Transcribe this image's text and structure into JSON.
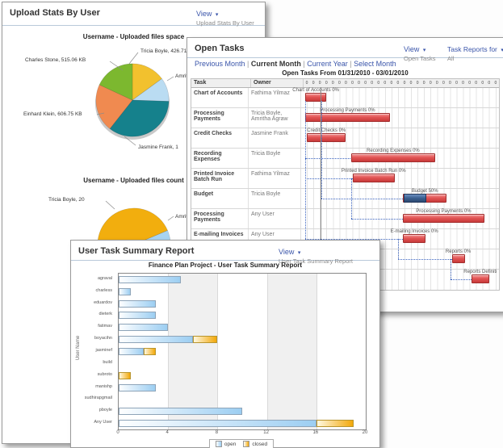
{
  "upload_stats": {
    "title": "Upload Stats By User",
    "view": {
      "label": "View",
      "selected": "Upload Stats By User"
    },
    "pie_space": {
      "title": "Username - Uploaded files space",
      "rotate": 0,
      "slices": [
        {
          "label": "Tricia Boyle, 426.71 K",
          "value": 426.71,
          "color": "#F2C12E"
        },
        {
          "label": "Amrit",
          "value": 300,
          "color": "#BADCF2"
        },
        {
          "label": "Jasmine Frank, 1",
          "value": 1000,
          "color": "#15818C"
        },
        {
          "label": "Einhard Klein, 606.75 KB",
          "value": 606.75,
          "color": "#F08A50"
        },
        {
          "label": "Charles Stone, 515.06 KB",
          "value": 515.06,
          "color": "#7CB82F"
        }
      ]
    },
    "pie_count": {
      "title": "Username - Uploaded files count",
      "rotate": 67,
      "slices": [
        {
          "label": "Amrit",
          "value": 6,
          "color": "#A8D4F2"
        },
        {
          "label": "Tricia Boyle, 20",
          "value": 20,
          "color": "#F2AE0E"
        }
      ]
    }
  },
  "open_tasks": {
    "title": "Open Tasks",
    "view": {
      "label": "View",
      "selected": "Open Tasks"
    },
    "task_reports": {
      "label": "Task Reports for",
      "selected": "All"
    },
    "nav": [
      {
        "label": "Previous Month",
        "active": false
      },
      {
        "label": "Current Month",
        "active": true
      },
      {
        "label": "Current Year",
        "active": false
      },
      {
        "label": "Select Month",
        "active": false
      }
    ],
    "chart_title": "Open Tasks From 01/31/2010 - 03/01/2010",
    "columns": {
      "task": "Task",
      "owner": "Owner"
    },
    "timeline_cells": 30,
    "timeline_label": "0",
    "rows": [
      {
        "task": "Chart of Accounts",
        "owner": "Fathima Yilmaz",
        "bar": {
          "label": "Chart of Accounts 0%",
          "start": 0.5,
          "end": 3.75,
          "progress": 0
        }
      },
      {
        "task": "Processing Payments",
        "owner": "Tricia Boyle, Amritha Agraw",
        "bar": {
          "label": "Processing Payments 0%",
          "start": 0.5,
          "end": 13.5,
          "progress": 0
        }
      },
      {
        "task": "Credit Checks",
        "owner": "Jasmine Frank",
        "bar": {
          "label": "Credit Checks 0%",
          "start": 0.75,
          "end": 6.75,
          "progress": 0
        }
      },
      {
        "task": "Recording Expenses",
        "owner": "Tricia Boyle",
        "bar": {
          "label": "Recording Expenses 0%",
          "start": 7.5,
          "end": 20.5,
          "progress": 0
        }
      },
      {
        "task": "Printed Invoice Batch Run",
        "owner": "Fathima Yilmaz",
        "bar": {
          "label": "Printed Invoice Batch Run 0%",
          "start": 7.75,
          "end": 14.25,
          "progress": 0
        }
      },
      {
        "task": "Budget",
        "owner": "Tricia Boyle",
        "bar": {
          "label": "Budget 50%",
          "start": 15.5,
          "end": 22.25,
          "progress": 0.5
        }
      },
      {
        "task": "Processing Payments",
        "owner": "Any User",
        "bar": {
          "label": "Processing Payments 0%",
          "start": 15.5,
          "end": 28,
          "progress": 0
        }
      },
      {
        "task": "E-mailing Invoices",
        "owner": "Any User",
        "bar": {
          "label": "E-mailing Invoices 0%",
          "start": 15.5,
          "end": 19,
          "progress": 0
        }
      },
      {
        "task": "",
        "owner": "",
        "bar": {
          "label": "Reports 0%",
          "start": 23,
          "end": 25,
          "progress": 0
        }
      },
      {
        "task": "",
        "owner": "",
        "bar": {
          "label": "Reports Definiti",
          "start": 26,
          "end": 28.75,
          "progress": 0
        }
      }
    ]
  },
  "user_task_summary": {
    "title": "User Task Summary Report",
    "view": {
      "label": "View",
      "selected": "User Task Summary Report"
    },
    "chart": {
      "title": "Finance Plan Project - User Task Summary Report",
      "ylabel": "User Name",
      "categories": [
        "agraval",
        "charless",
        "eduardov",
        "dieterk",
        "fatimav",
        "boyacihn",
        "jasminef",
        "build",
        "subroto",
        "manishp",
        "sudhirapgmail",
        "pboyle",
        "Any User"
      ],
      "open": [
        5,
        1,
        3,
        3,
        4,
        6,
        2,
        0,
        0,
        3,
        0,
        10,
        16
      ],
      "closed": [
        0,
        0,
        0,
        0,
        0,
        2,
        1,
        0,
        1,
        0,
        0,
        0,
        3
      ],
      "xticks": [
        0,
        4,
        8,
        12,
        16,
        20
      ],
      "xlim": [
        0,
        20
      ],
      "legend": [
        {
          "label": "open",
          "color": "#9CCEF2"
        },
        {
          "label": "closed",
          "color": "#F2A80A"
        }
      ]
    }
  },
  "chart_data": [
    {
      "type": "pie",
      "title": "Username - Uploaded files space",
      "labels": [
        "Tricia Boyle",
        "Amrit",
        "Jasmine Frank",
        "Einhard Klein",
        "Charles Stone"
      ],
      "values": [
        426.71,
        300,
        1000,
        606.75,
        515.06
      ]
    },
    {
      "type": "pie",
      "title": "Username - Uploaded files count",
      "labels": [
        "Tricia Boyle",
        "Amrit"
      ],
      "values": [
        20,
        6
      ]
    },
    {
      "type": "gantt",
      "title": "Open Tasks From 01/31/2010 - 03/01/2010",
      "tasks": [
        "Chart of Accounts",
        "Processing Payments",
        "Credit Checks",
        "Recording Expenses",
        "Printed Invoice Batch Run",
        "Budget",
        "Processing Payments",
        "E-mailing Invoices",
        "Reports",
        "Reports Definiti"
      ],
      "owners": [
        "Fathima Yilmaz",
        "Tricia Boyle, Amritha Agraw",
        "Jasmine Frank",
        "Tricia Boyle",
        "Fathima Yilmaz",
        "Tricia Boyle",
        "Any User",
        "Any User",
        "",
        ""
      ],
      "start_day": [
        0.5,
        0.5,
        0.75,
        7.5,
        7.75,
        15.5,
        15.5,
        15.5,
        23,
        26
      ],
      "end_day": [
        3.75,
        13.5,
        6.75,
        20.5,
        14.25,
        22.25,
        28,
        19,
        25,
        28.75
      ],
      "progress_pct": [
        0,
        0,
        0,
        0,
        0,
        50,
        0,
        0,
        0,
        0
      ]
    },
    {
      "type": "bar",
      "orientation": "horizontal",
      "title": "Finance Plan Project - User Task Summary Report",
      "categories": [
        "agraval",
        "charless",
        "eduardov",
        "dieterk",
        "fatimav",
        "boyacihn",
        "jasminef",
        "build",
        "subroto",
        "manishp",
        "sudhirapgmail",
        "pboyle",
        "Any User"
      ],
      "series": [
        {
          "name": "open",
          "values": [
            5,
            1,
            3,
            3,
            4,
            6,
            2,
            0,
            0,
            3,
            0,
            10,
            16
          ]
        },
        {
          "name": "closed",
          "values": [
            0,
            0,
            0,
            0,
            0,
            2,
            1,
            0,
            1,
            0,
            0,
            0,
            3
          ]
        }
      ],
      "xlabel": "",
      "ylabel": "User Name",
      "xlim": [
        0,
        20
      ],
      "legend_position": "bottom"
    }
  ]
}
